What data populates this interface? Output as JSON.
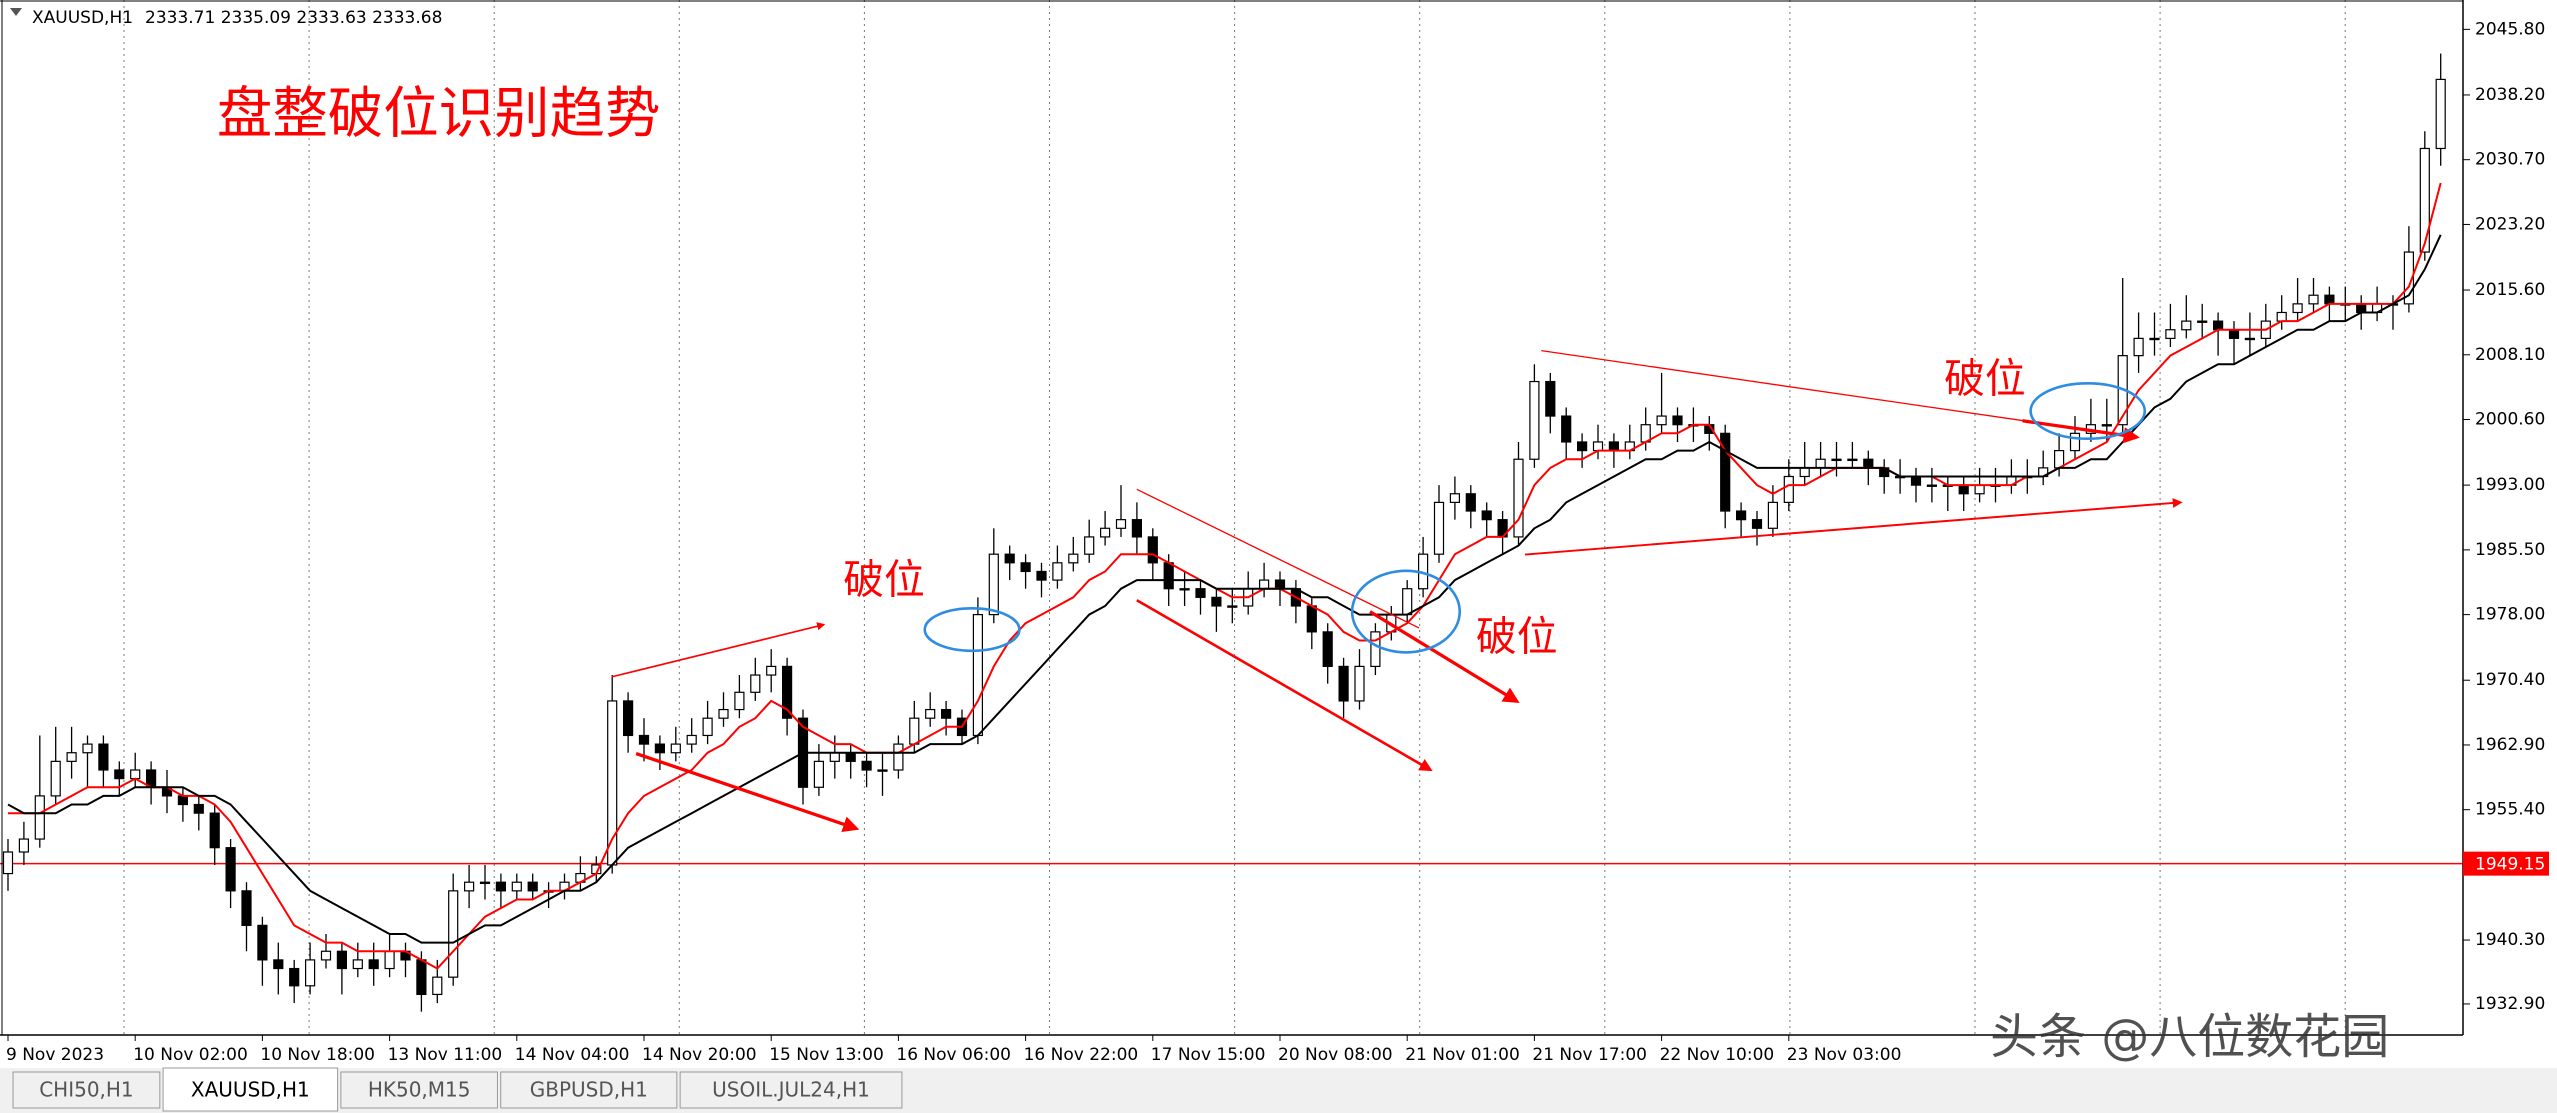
{
  "chart_data": {
    "type": "candlestick",
    "title": "XAUUSD,H1",
    "header_values": "2333.71 2335.09 2333.63 2333.68",
    "annotation_title": "盘整破位识别趋势",
    "annotations": [
      "破位",
      "破位",
      "破位"
    ],
    "categories": [
      "9 Nov 2023",
      null,
      null,
      null,
      null,
      null,
      null,
      null,
      "10 Nov 02:00",
      null,
      null,
      null,
      null,
      null,
      null,
      null,
      "10 Nov 18:00",
      null,
      null,
      null,
      null,
      null,
      null,
      null,
      "13 Nov 11:00",
      null,
      null,
      null,
      null,
      null,
      null,
      null,
      "14 Nov 04:00",
      null,
      null,
      null,
      null,
      null,
      null,
      null,
      "14 Nov 20:00",
      null,
      null,
      null,
      null,
      null,
      null,
      null,
      "15 Nov 13:00",
      null,
      null,
      null,
      null,
      null,
      null,
      null,
      "16 Nov 06:00",
      null,
      null,
      null,
      null,
      null,
      null,
      null,
      "16 Nov 22:00",
      null,
      null,
      null,
      null,
      null,
      null,
      null,
      "17 Nov 15:00",
      null,
      null,
      null,
      null,
      null,
      null,
      null,
      "20 Nov 08:00",
      null,
      null,
      null,
      null,
      null,
      null,
      null,
      "21 Nov 01:00",
      null,
      null,
      null,
      null,
      null,
      null,
      null,
      "21 Nov 17:00",
      null,
      null,
      null,
      null,
      null,
      null,
      null,
      "22 Nov 10:00",
      null,
      null,
      null,
      null,
      null,
      null,
      null,
      "23 Nov 03:00",
      null,
      null,
      null,
      null,
      null,
      null,
      null,
      null,
      null,
      null,
      null,
      null,
      null,
      null,
      null,
      null,
      null,
      null,
      null,
      null,
      null,
      null,
      null,
      null,
      null,
      null,
      null,
      null,
      null,
      null,
      null,
      null,
      null,
      null,
      null,
      null,
      null,
      null,
      null,
      null,
      null
    ],
    "open": [
      1948,
      1950.5,
      1952,
      1957,
      1961,
      1962,
      1963,
      1960,
      1959,
      1960,
      1958,
      1957,
      1956,
      1955,
      1951,
      1946,
      1942,
      1938,
      1937,
      1935,
      1938,
      1939,
      1937,
      1938,
      1937,
      1939,
      1938,
      1934,
      1936,
      1946,
      1947,
      1947,
      1946,
      1947,
      1946,
      1946,
      1947,
      1948,
      1949,
      1968,
      1964,
      1963,
      1962,
      1963,
      1964,
      1966,
      1967,
      1969,
      1971,
      1972,
      1966,
      1958,
      1961,
      1962,
      1961,
      1960,
      1960,
      1963,
      1966,
      1967,
      1966,
      1964,
      1978,
      1985,
      1984,
      1983,
      1982,
      1984,
      1985,
      1987,
      1988,
      1989,
      1987,
      1984,
      1981,
      1981,
      1980,
      1979,
      1979,
      1981,
      1982,
      1981,
      1979,
      1976,
      1972,
      1968,
      1972,
      1976,
      1978,
      1981,
      1985,
      1991,
      1992,
      1990,
      1989,
      1987,
      1996,
      2005,
      2001,
      1998,
      1997,
      1998,
      1997,
      1998,
      2000,
      2001,
      2000,
      2000,
      1999,
      1990,
      1989,
      1988,
      1991,
      1994,
      1995,
      1996,
      1996,
      1996,
      1995,
      1994,
      1994,
      1993,
      1993,
      1993,
      1992,
      1993,
      1993,
      1994,
      1994,
      1995,
      1997,
      1999,
      2000,
      2000,
      2008,
      2010,
      2010,
      2011,
      2012,
      2012,
      2011,
      2010,
      2010,
      2012,
      2013,
      2014,
      2015,
      2014,
      2014,
      2013,
      2014,
      2014,
      2020,
      2032
    ],
    "high": [
      1952,
      1954,
      1964,
      1965,
      1965,
      1964,
      1964,
      1961,
      1962,
      1961,
      1960,
      1958,
      1957,
      1956,
      1952,
      1947,
      1943,
      1940,
      1938,
      1940,
      1941,
      1940,
      1940,
      1940,
      1941,
      1940,
      1939,
      1938,
      1948,
      1949,
      1949,
      1948,
      1948,
      1948,
      1947,
      1948,
      1950,
      1950,
      1971,
      1969,
      1966,
      1964,
      1965,
      1966,
      1968,
      1969,
      1971,
      1973,
      1974,
      1973,
      1967,
      1963,
      1964,
      1963,
      1962,
      1962,
      1964,
      1968,
      1969,
      1968,
      1967,
      1980,
      1988,
      1986,
      1985,
      1984,
      1986,
      1987,
      1989,
      1990,
      1993,
      1991,
      1988,
      1985,
      1983,
      1982,
      1981,
      1981,
      1983,
      1984,
      1983,
      1982,
      1980,
      1977,
      1973,
      1974,
      1977,
      1979,
      1982,
      1987,
      1993,
      1994,
      1993,
      1991,
      1990,
      1998,
      2007,
      2006,
      2002,
      1999,
      2000,
      1999,
      2000,
      2002,
      2006,
      2002,
      2002,
      2001,
      2000,
      1991,
      1990,
      1993,
      1996,
      1998,
      1998,
      1998,
      1998,
      1997,
      1996,
      1996,
      1995,
      1995,
      1994,
      1994,
      1995,
      1995,
      1996,
      1996,
      1997,
      1999,
      2001,
      2003,
      2003,
      2017,
      2013,
      2013,
      2014,
      2015,
      2014,
      2013,
      2012,
      2013,
      2014,
      2015,
      2017,
      2017,
      2016,
      2016,
      2015,
      2016,
      2015,
      2023,
      2034,
      2043
    ],
    "low": [
      1946,
      1949,
      1951,
      1956,
      1959,
      1958,
      1958,
      1957,
      1958,
      1956,
      1955,
      1954,
      1953,
      1949,
      1944,
      1939,
      1935,
      1934,
      1933,
      1934,
      1937,
      1934,
      1936,
      1935,
      1936,
      1936,
      1932,
      1933,
      1935,
      1944,
      1945,
      1944,
      1945,
      1945,
      1944,
      1945,
      1946,
      1947,
      1948,
      1962,
      1961,
      1960,
      1961,
      1962,
      1963,
      1965,
      1966,
      1968,
      1969,
      1964,
      1956,
      1957,
      1959,
      1959,
      1958,
      1957,
      1959,
      1962,
      1965,
      1964,
      1963,
      1963,
      1977,
      1982,
      1981,
      1980,
      1981,
      1983,
      1984,
      1986,
      1987,
      1985,
      1982,
      1979,
      1979,
      1978,
      1976,
      1977,
      1978,
      1980,
      1979,
      1977,
      1974,
      1970,
      1966,
      1967,
      1971,
      1975,
      1977,
      1980,
      1984,
      1989,
      1988,
      1987,
      1985,
      1986,
      1995,
      1999,
      1996,
      1995,
      1996,
      1995,
      1996,
      1997,
      1999,
      1998,
      1998,
      1997,
      1988,
      1987,
      1986,
      1987,
      1990,
      1993,
      1994,
      1994,
      1995,
      1993,
      1992,
      1992,
      1991,
      1991,
      1990,
      1990,
      1991,
      1991,
      1992,
      1992,
      1993,
      1994,
      1996,
      1998,
      1998,
      1999,
      2006,
      2008,
      2009,
      2010,
      2010,
      2008,
      2007,
      2008,
      2009,
      2011,
      2012,
      2013,
      2012,
      2012,
      2011,
      2012,
      2011,
      2013,
      2019,
      2030
    ],
    "close": [
      1950.5,
      1952,
      1957,
      1961,
      1962,
      1963,
      1960,
      1959,
      1960,
      1958,
      1957,
      1956,
      1955,
      1951,
      1946,
      1942,
      1938,
      1937,
      1935,
      1938,
      1939,
      1937,
      1938,
      1937,
      1939,
      1938,
      1934,
      1936,
      1946,
      1947,
      1947,
      1946,
      1947,
      1946,
      1946,
      1947,
      1948,
      1949,
      1968,
      1964,
      1963,
      1962,
      1963,
      1964,
      1966,
      1967,
      1969,
      1971,
      1972,
      1966,
      1958,
      1961,
      1962,
      1961,
      1960,
      1960,
      1963,
      1966,
      1967,
      1966,
      1964,
      1978,
      1985,
      1984,
      1983,
      1982,
      1984,
      1985,
      1987,
      1988,
      1989,
      1987,
      1984,
      1981,
      1981,
      1980,
      1979,
      1979,
      1981,
      1982,
      1981,
      1979,
      1976,
      1972,
      1968,
      1972,
      1976,
      1978,
      1981,
      1985,
      1991,
      1992,
      1990,
      1989,
      1987,
      1996,
      2005,
      2001,
      1998,
      1997,
      1998,
      1997,
      1998,
      2000,
      2001,
      2000,
      2000,
      1999,
      1990,
      1989,
      1988,
      1991,
      1994,
      1995,
      1996,
      1996,
      1996,
      1995,
      1994,
      1994,
      1993,
      1993,
      1993,
      1992,
      1993,
      1993,
      1994,
      1994,
      1995,
      1997,
      1999,
      2000,
      2000,
      2008,
      2010,
      2010,
      2011,
      2012,
      2012,
      2011,
      2010,
      2010,
      2012,
      2013,
      2014,
      2015,
      2014,
      2014,
      2013,
      2014,
      2014,
      2020,
      2032,
      2040
    ],
    "up_color": "#ffffff",
    "down_color": "#000000",
    "lines": [
      {
        "color": "#ff0000",
        "values": [
          1955,
          1955,
          1955,
          1956,
          1957,
          1958,
          1958,
          1958,
          1959,
          1958,
          1958,
          1957,
          1957,
          1956,
          1954,
          1951,
          1948,
          1945,
          1942,
          1941,
          1940,
          1940,
          1939,
          1939,
          1939,
          1939,
          1938,
          1937,
          1939,
          1941,
          1943,
          1944,
          1945,
          1945,
          1946,
          1946,
          1947,
          1948,
          1952,
          1955,
          1957,
          1958,
          1959,
          1960,
          1962,
          1963,
          1965,
          1966,
          1968,
          1967,
          1965,
          1964,
          1963,
          1963,
          1962,
          1962,
          1962,
          1963,
          1964,
          1965,
          1965,
          1968,
          1972,
          1975,
          1977,
          1978,
          1979,
          1980,
          1982,
          1983,
          1985,
          1985,
          1985,
          1984,
          1983,
          1982,
          1981,
          1980,
          1980,
          1981,
          1981,
          1980,
          1979,
          1978,
          1976,
          1975,
          1975,
          1976,
          1977,
          1979,
          1982,
          1985,
          1986,
          1987,
          1987,
          1989,
          1993,
          1995,
          1996,
          1996,
          1997,
          1997,
          1997,
          1998,
          1999,
          1999,
          2000,
          2000,
          1997,
          1995,
          1993,
          1992,
          1993,
          1993,
          1994,
          1995,
          1995,
          1995,
          1995,
          1994,
          1994,
          1994,
          1993,
          1993,
          1993,
          1993,
          1993,
          1994,
          1994,
          1995,
          1996,
          1997,
          1998,
          2001,
          2004,
          2006,
          2008,
          2009,
          2010,
          2011,
          2011,
          2011,
          2011,
          2012,
          2012,
          2013,
          2014,
          2014,
          2014,
          2014,
          2014,
          2016,
          2021,
          2028
        ]
      },
      {
        "color": "#000000",
        "values": [
          1956,
          1955,
          1955,
          1955,
          1956,
          1956,
          1957,
          1957,
          1958,
          1958,
          1958,
          1958,
          1957,
          1957,
          1956,
          1954,
          1952,
          1950,
          1948,
          1946,
          1945,
          1944,
          1943,
          1942,
          1941,
          1941,
          1940,
          1940,
          1940,
          1941,
          1942,
          1942,
          1943,
          1944,
          1945,
          1946,
          1946,
          1947,
          1949,
          1951,
          1952,
          1953,
          1954,
          1955,
          1956,
          1957,
          1958,
          1959,
          1960,
          1961,
          1962,
          1962,
          1962,
          1962,
          1962,
          1962,
          1962,
          1962,
          1963,
          1963,
          1963,
          1964,
          1966,
          1968,
          1970,
          1972,
          1974,
          1976,
          1978,
          1979,
          1981,
          1982,
          1982,
          1982,
          1982,
          1982,
          1981,
          1981,
          1981,
          1981,
          1981,
          1981,
          1980,
          1980,
          1979,
          1978,
          1978,
          1978,
          1978,
          1979,
          1980,
          1982,
          1983,
          1984,
          1985,
          1986,
          1988,
          1989,
          1991,
          1992,
          1993,
          1994,
          1995,
          1996,
          1996,
          1997,
          1997,
          1998,
          1997,
          1996,
          1995,
          1995,
          1995,
          1995,
          1995,
          1995,
          1995,
          1995,
          1995,
          1994,
          1994,
          1994,
          1994,
          1994,
          1994,
          1994,
          1994,
          1994,
          1994,
          1995,
          1995,
          1996,
          1996,
          1998,
          2000,
          2002,
          2003,
          2005,
          2006,
          2007,
          2007,
          2008,
          2009,
          2010,
          2011,
          2011,
          2012,
          2012,
          2013,
          2013,
          2014,
          2015,
          2018,
          2022
        ]
      }
    ],
    "ylim": [
      1929.3,
      2049.2
    ],
    "yticks": [
      {
        "value": 2045.8,
        "label": "2045.80"
      },
      {
        "value": 2038.2,
        "label": "2038.20"
      },
      {
        "value": 2030.7,
        "label": "2030.70"
      },
      {
        "value": 2023.2,
        "label": "2023.20"
      },
      {
        "value": 2015.6,
        "label": "2015.60"
      },
      {
        "value": 2008.1,
        "label": "2008.10"
      },
      {
        "value": 2000.6,
        "label": "2000.60"
      },
      {
        "value": 1993,
        "label": "1993.00"
      },
      {
        "value": 1985.5,
        "label": "1985.50"
      },
      {
        "value": 1978,
        "label": "1978.00"
      },
      {
        "value": 1970.4,
        "label": "1970.40"
      },
      {
        "value": 1962.9,
        "label": "1962.90"
      },
      {
        "value": 1955.4,
        "label": "1955.40"
      },
      {
        "value": 1940.3,
        "label": "1940.30"
      },
      {
        "value": 1932.9,
        "label": "1932.90"
      }
    ],
    "hline": {
      "value": 1949.15,
      "label": "1949.15",
      "color": "#ff0000"
    },
    "grid": true
  },
  "tabs": [
    "CHI50,H1",
    "XAUUSD,H1",
    "HK50,M15",
    "GBPUSD,H1",
    "USOIL.JUL24,H1"
  ],
  "watermark": "头条 @八位数花园"
}
